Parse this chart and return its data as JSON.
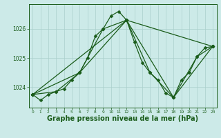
{
  "background_color": "#cceae8",
  "grid_color": "#aacfcc",
  "line_color": "#1a5c1a",
  "marker_color": "#1a5c1a",
  "xlabel": "Graphe pression niveau de la mer (hPa)",
  "xlabel_fontsize": 7.0,
  "xtick_fontsize": 4.2,
  "ytick_fontsize": 5.5,
  "xticks": [
    0,
    1,
    2,
    3,
    4,
    5,
    6,
    7,
    8,
    9,
    10,
    11,
    12,
    13,
    14,
    15,
    16,
    17,
    18,
    19,
    20,
    21,
    22,
    23
  ],
  "yticks": [
    1024,
    1025,
    1026
  ],
  "ylim": [
    1023.3,
    1026.85
  ],
  "xlim": [
    -0.5,
    23.5
  ],
  "series": [
    {
      "x": [
        0,
        1,
        2,
        3,
        4,
        5,
        6,
        7,
        8,
        9,
        10,
        11,
        12,
        13,
        14,
        15,
        16,
        17,
        18,
        19,
        20,
        21,
        22,
        23
      ],
      "y": [
        1023.75,
        1023.55,
        1023.75,
        1023.85,
        1023.95,
        1024.25,
        1024.5,
        1025.0,
        1025.75,
        1026.0,
        1026.45,
        1026.6,
        1026.3,
        1025.55,
        1024.85,
        1024.5,
        1024.25,
        1023.8,
        1023.65,
        1024.25,
        1024.5,
        1025.05,
        1025.35,
        1025.4
      ],
      "marker": "D",
      "markersize": 2.5,
      "linewidth": 0.9
    },
    {
      "x": [
        0,
        3,
        6,
        9,
        12,
        15,
        18,
        21,
        23
      ],
      "y": [
        1023.75,
        1023.85,
        1024.5,
        1026.0,
        1026.3,
        1024.5,
        1023.65,
        1025.05,
        1025.4
      ],
      "marker": "D",
      "markersize": 2.5,
      "linewidth": 0.9
    },
    {
      "x": [
        0,
        6,
        12,
        18,
        23
      ],
      "y": [
        1023.75,
        1024.5,
        1026.3,
        1023.65,
        1025.4
      ],
      "marker": "D",
      "markersize": 2.5,
      "linewidth": 0.9
    },
    {
      "x": [
        0,
        12,
        23
      ],
      "y": [
        1023.75,
        1026.3,
        1025.4
      ],
      "marker": "D",
      "markersize": 2.5,
      "linewidth": 0.9
    }
  ]
}
